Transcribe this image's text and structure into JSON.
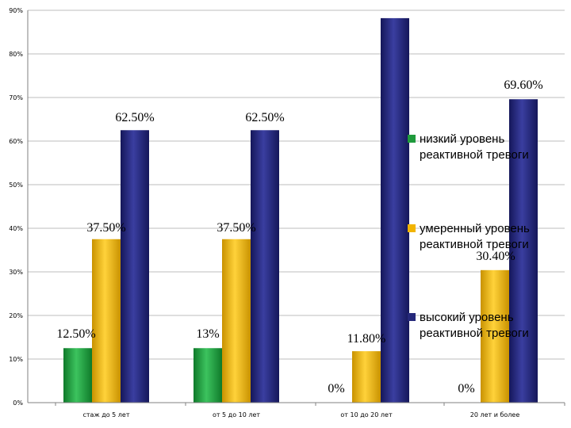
{
  "chart_data": {
    "type": "bar",
    "categories": [
      "стаж до 5 лет",
      "от 5 до 10 лет",
      "от 10 до 20 лет",
      "20 лет и более"
    ],
    "series": [
      {
        "name": "низкий уровень реактивной тревоги",
        "name_lines": [
          "низкий уровень",
          "реактивной тревоги"
        ],
        "values": [
          12.5,
          12.5,
          null,
          null
        ],
        "labels": [
          "12.50%",
          "13%",
          "",
          ""
        ],
        "color": "#1f9a3c"
      },
      {
        "name": "умеренный уровень реактивной тревоги",
        "name_lines": [
          "умеренный уровень",
          "реактивной тревоги"
        ],
        "values": [
          37.5,
          37.5,
          11.8,
          30.4
        ],
        "labels": [
          "37.50%",
          "37.50%",
          "11.80%",
          "30.40%"
        ],
        "color": "#f2b400"
      },
      {
        "name": "высокий уровень реактивной тревоги",
        "name_lines": [
          "высокий уровень",
          "реактивной тревоги"
        ],
        "values": [
          62.5,
          62.5,
          88.2,
          69.6
        ],
        "labels": [
          "62.50%",
          "62.50%",
          "",
          "69.60%"
        ],
        "color": "#25287a"
      }
    ],
    "zero_labels": [
      "0%",
      "0%"
    ],
    "y_ticks": [
      "0%",
      "10%",
      "20%",
      "30%",
      "40%",
      "50%",
      "60%",
      "70%",
      "80%",
      "90%"
    ],
    "ylim": [
      0,
      90
    ],
    "grid": true,
    "legend_position": "right",
    "title": "",
    "xlabel": "",
    "ylabel": ""
  }
}
